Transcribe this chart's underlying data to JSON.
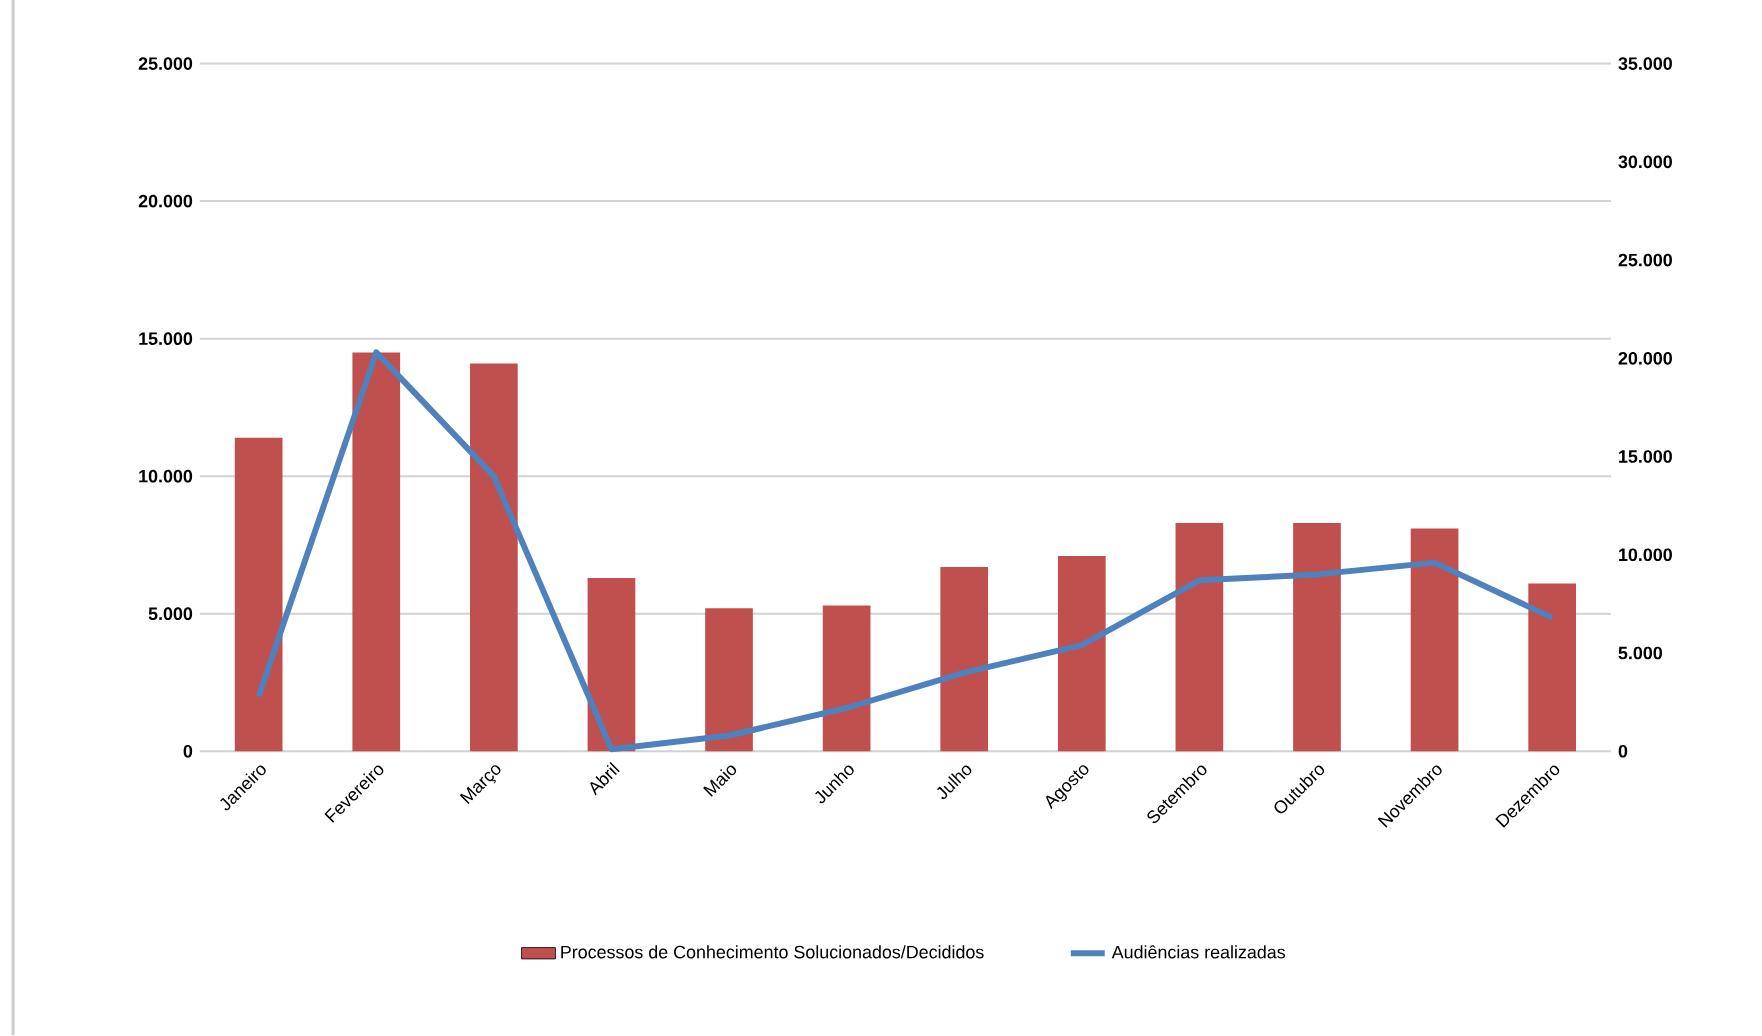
{
  "chart_data": {
    "type": "bar",
    "categories": [
      "Janeiro",
      "Fevereiro",
      "Março",
      "Abril",
      "Maio",
      "Junho",
      "Julho",
      "Agosto",
      "Setembro",
      "Outubro",
      "Novembro",
      "Dezembro"
    ],
    "series": [
      {
        "name": "Processos de Conhecimento Solucionados/Decididos",
        "color": "#c0504d",
        "values": [
          11400,
          14500,
          14100,
          6300,
          5200,
          5300,
          6700,
          7100,
          8300,
          8300,
          8100,
          6100
        ]
      },
      {
        "name": "Audiências realizadas",
        "type": "line",
        "axis": "y2",
        "color": "#4f81bd",
        "values": [
          2800,
          20300,
          14000,
          100,
          800,
          2200,
          4000,
          5400,
          8700,
          9000,
          9600,
          6800
        ]
      }
    ],
    "ylim": [
      0,
      25000
    ],
    "yticks": [
      {
        "value": 0,
        "label": "0"
      },
      {
        "value": 5000,
        "label": "5.000"
      },
      {
        "value": 10000,
        "label": "10.000"
      },
      {
        "value": 15000,
        "label": "15.000"
      },
      {
        "value": 20000,
        "label": "20.000"
      },
      {
        "value": 25000,
        "label": "25.000"
      }
    ],
    "y2lim": [
      0,
      35000
    ],
    "y2ticks": [
      {
        "value": 0,
        "label": "0"
      },
      {
        "value": 5000,
        "label": "5.000"
      },
      {
        "value": 10000,
        "label": "10.000"
      },
      {
        "value": 15000,
        "label": "15.000"
      },
      {
        "value": 20000,
        "label": "20.000"
      },
      {
        "value": 25000,
        "label": "25.000"
      },
      {
        "value": 30000,
        "label": "30.000"
      },
      {
        "value": 35000,
        "label": "35.000"
      }
    ],
    "grid": "y",
    "legend": "bottom",
    "marker": "none"
  }
}
